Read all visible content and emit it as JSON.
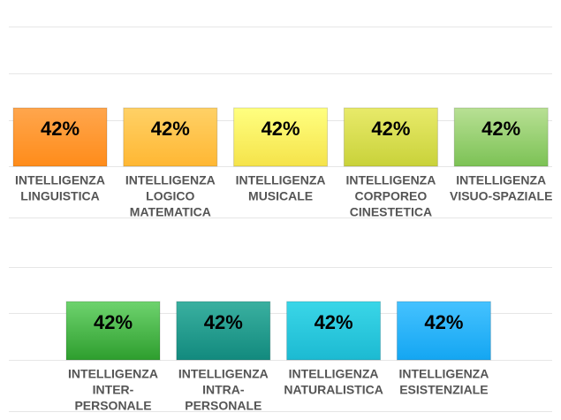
{
  "chart_data": [
    {
      "type": "bar",
      "categories": [
        [
          "INTELLIGENZA",
          "LINGUISTICA"
        ],
        [
          "INTELLIGENZA",
          "LOGICO",
          "MATEMATICA"
        ],
        [
          "INTELLIGENZA",
          "MUSICALE"
        ],
        [
          "INTELLIGENZA",
          "CORPOREO",
          "CINESTETICA"
        ],
        [
          "INTELLIGENZA",
          "VISUO-SPAZIALE"
        ]
      ],
      "values": [
        42,
        42,
        42,
        42,
        42
      ],
      "value_labels": [
        "42%",
        "42%",
        "42%",
        "42%",
        "42%"
      ],
      "colors": [
        [
          "#ffa64d",
          "#ff8c1a"
        ],
        [
          "#ffd166",
          "#ffb733"
        ],
        [
          "#ffff80",
          "#f5e34a"
        ],
        [
          "#e8ea6a",
          "#c9d23a"
        ],
        [
          "#b8e094",
          "#7cc255"
        ]
      ],
      "grid": true
    },
    {
      "type": "bar",
      "categories": [
        [
          "INTELLIGENZA",
          "INTER-",
          "PERSONALE"
        ],
        [
          "INTELLIGENZA",
          "INTRA-",
          "PERSONALE"
        ],
        [
          "INTELLIGENZA",
          "NATURALISTICA"
        ],
        [
          "INTELLIGENZA",
          "ESISTENZIALE"
        ]
      ],
      "values": [
        42,
        42,
        42,
        42
      ],
      "value_labels": [
        "42%",
        "42%",
        "42%",
        "42%"
      ],
      "colors": [
        [
          "#6ed36e",
          "#2e9e2e"
        ],
        [
          "#3ab0a0",
          "#128a7e"
        ],
        [
          "#3ad6e8",
          "#1cbad2"
        ],
        [
          "#45c2ff",
          "#14a6f2"
        ]
      ],
      "grid": true
    }
  ]
}
